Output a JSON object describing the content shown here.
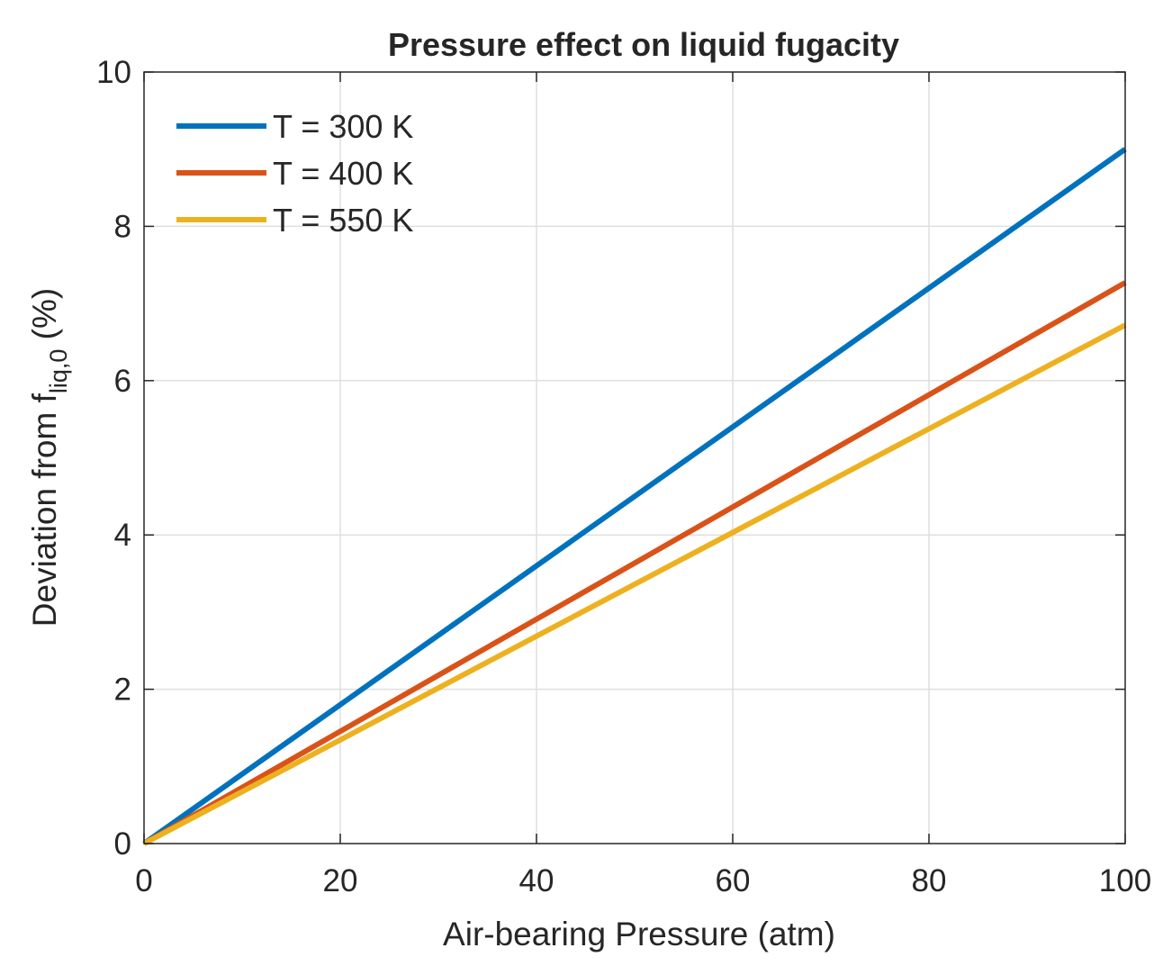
{
  "chart_data": {
    "type": "line",
    "title": "Pressure effect on liquid fugacity",
    "xlabel": "Air-bearing Pressure (atm)",
    "ylabel": {
      "main": "Deviation from f",
      "subscript": "liq,0",
      "suffix": " (%)"
    },
    "xlim": [
      0,
      100
    ],
    "ylim": [
      0,
      10
    ],
    "xticks": [
      0,
      20,
      40,
      60,
      80,
      100
    ],
    "yticks": [
      0,
      2,
      4,
      6,
      8,
      10
    ],
    "xtick_labels": [
      "0",
      "20",
      "40",
      "60",
      "80",
      "100"
    ],
    "ytick_labels": [
      "0",
      "2",
      "4",
      "6",
      "8",
      "10"
    ],
    "grid": true,
    "legend_position": "top-left",
    "series": [
      {
        "name": "T = 300 K",
        "color": "#0072BD",
        "x": [
          0,
          100
        ],
        "y": [
          0,
          9.0
        ]
      },
      {
        "name": "T = 400 K",
        "color": "#D95319",
        "x": [
          0,
          100
        ],
        "y": [
          0,
          7.27
        ]
      },
      {
        "name": "T = 550 K",
        "color": "#EDB120",
        "x": [
          0,
          100
        ],
        "y": [
          0,
          6.72
        ]
      }
    ]
  }
}
